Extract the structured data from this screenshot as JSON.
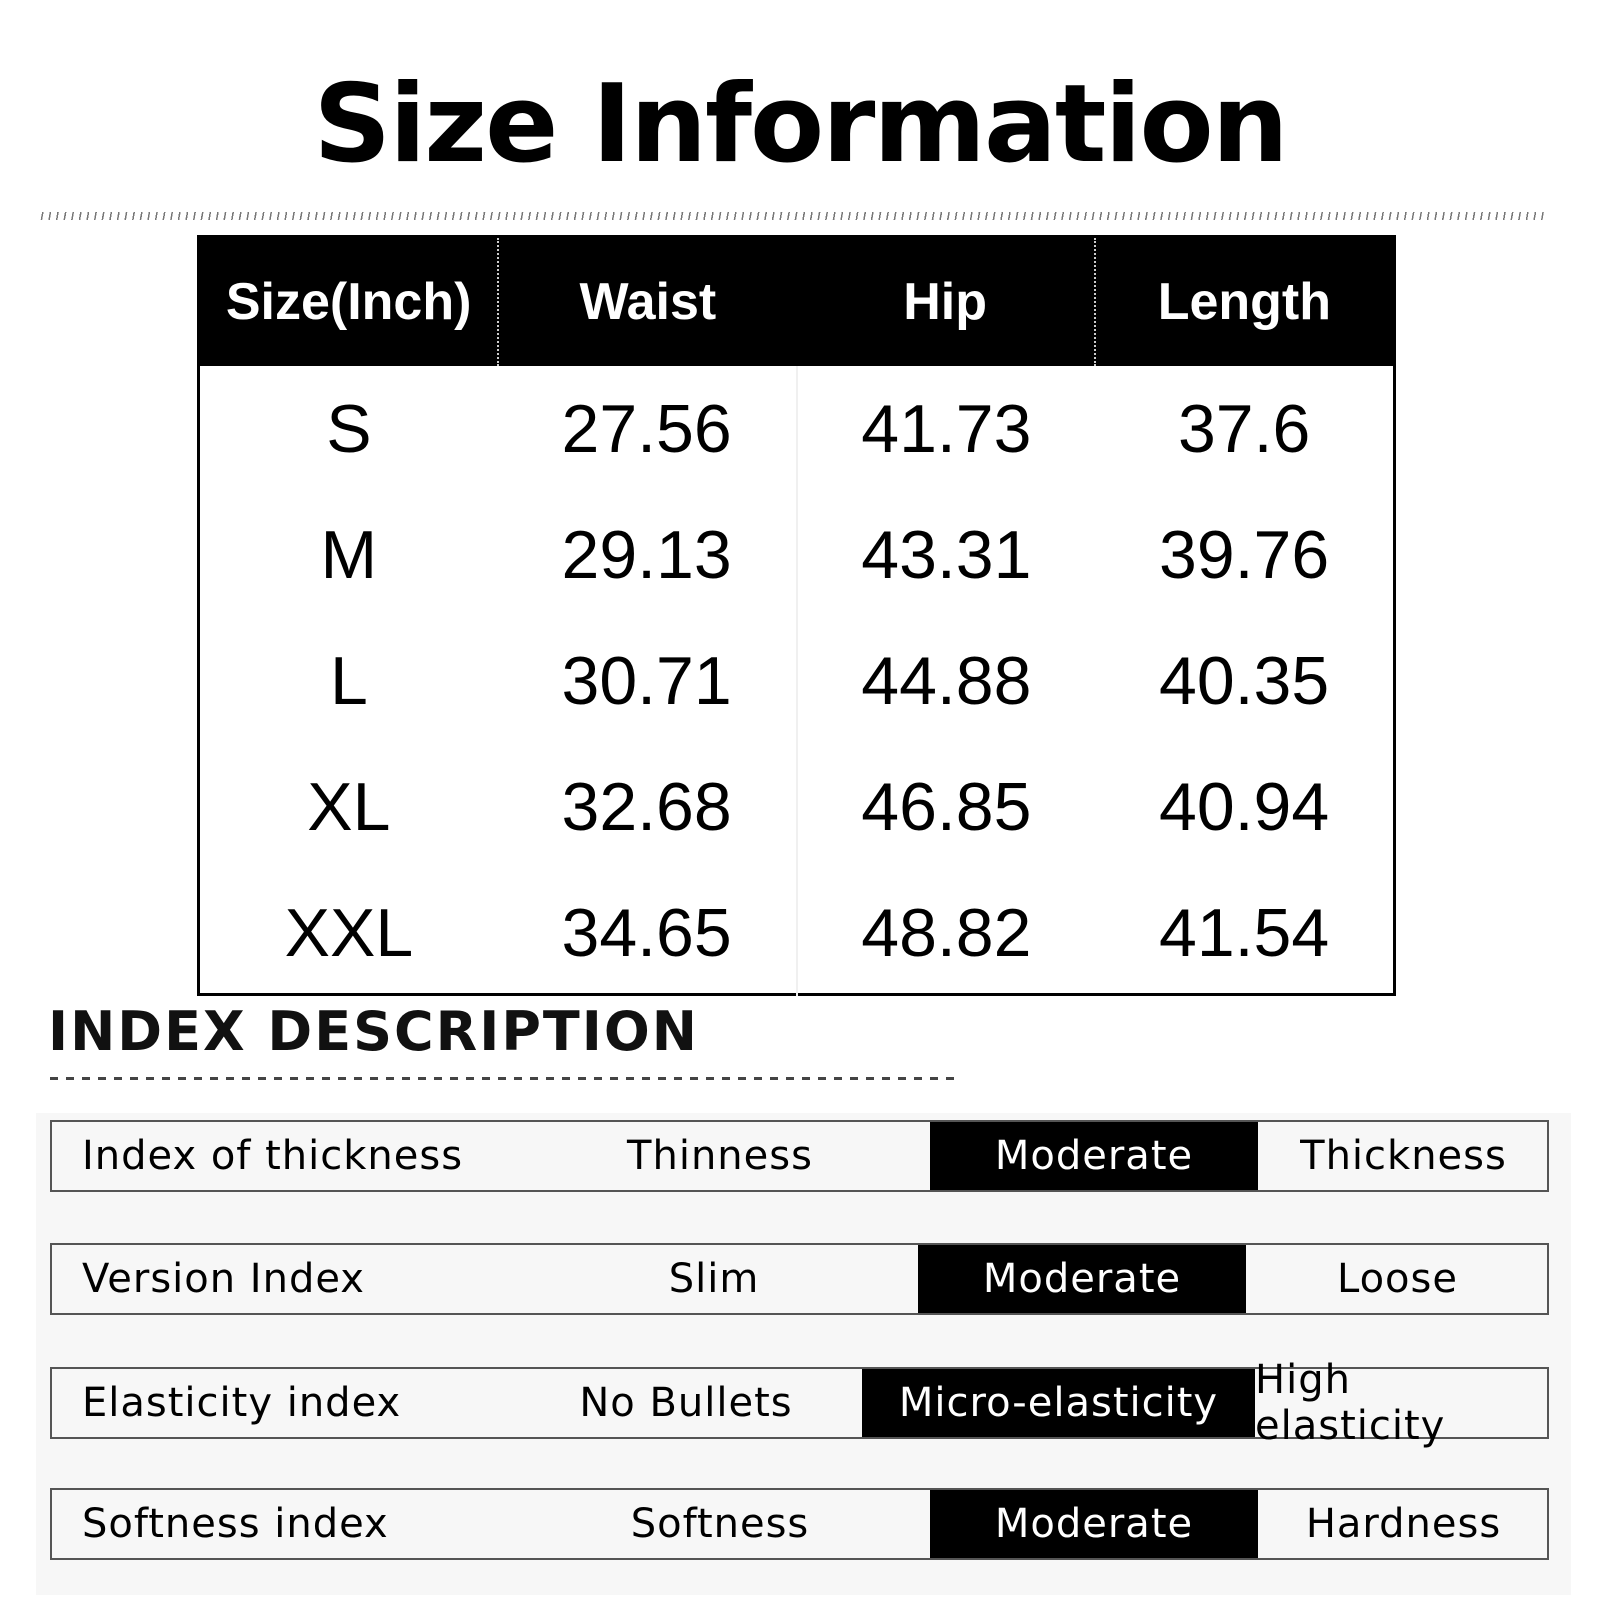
{
  "title": "Size Information",
  "table": {
    "headers": [
      "Size(Inch)",
      "Waist",
      "Hip",
      "Length"
    ],
    "rows": [
      [
        "S",
        "27.56",
        "41.73",
        "37.6"
      ],
      [
        "M",
        "29.13",
        "43.31",
        "39.76"
      ],
      [
        "L",
        "30.71",
        "44.88",
        "40.35"
      ],
      [
        "XL",
        "32.68",
        "46.85",
        "40.94"
      ],
      [
        "XXL",
        "34.65",
        "48.82",
        "41.54"
      ]
    ]
  },
  "index": {
    "title": "INDEX DESCRIPTION",
    "rows": [
      {
        "label": "Index of thickness",
        "options": [
          "Thinness",
          "Moderate",
          "Thickness"
        ],
        "selected": "Moderate"
      },
      {
        "label": "Version Index",
        "options": [
          "Slim",
          "Moderate",
          "Loose"
        ],
        "selected": "Moderate"
      },
      {
        "label": "Elasticity index",
        "options": [
          "No Bullets",
          "Micro-elasticity",
          "High elasticity"
        ],
        "selected": "Micro-elasticity"
      },
      {
        "label": "Softness index",
        "options": [
          "Softness",
          "Moderate",
          "Hardness"
        ],
        "selected": "Moderate"
      }
    ]
  }
}
